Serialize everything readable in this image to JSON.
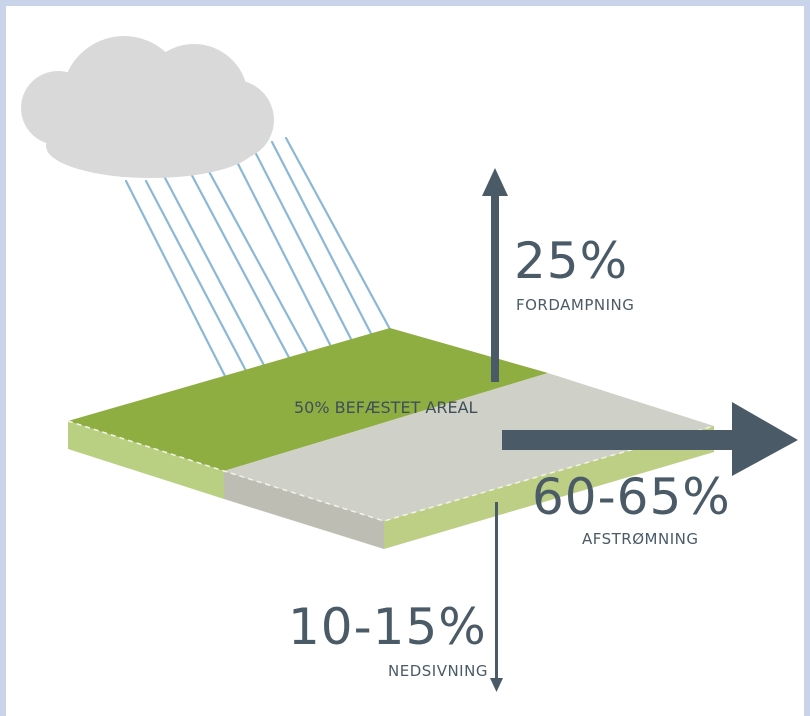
{
  "center_label": "50% BEFÆSTET AREAL",
  "evaporation": {
    "percent": "25%",
    "label": "FORDAMPNING"
  },
  "runoff": {
    "percent": "60-65%",
    "label": "AFSTRØMNING"
  },
  "infiltration": {
    "percent": "10-15%",
    "label": "NEDSIVNING"
  },
  "colors": {
    "green_top": "#8fae42",
    "green_side": "#b8cf82",
    "grey_top": "#cfcfc6",
    "grey_side": "#bcbcb2",
    "arrow": "#4a5b67",
    "rain": "#88b6d4",
    "cloud": "#d8d8d8"
  },
  "icons": [
    "cloud-icon",
    "rain-icon",
    "arrow-up-icon",
    "arrow-right-icon",
    "arrow-down-icon"
  ]
}
